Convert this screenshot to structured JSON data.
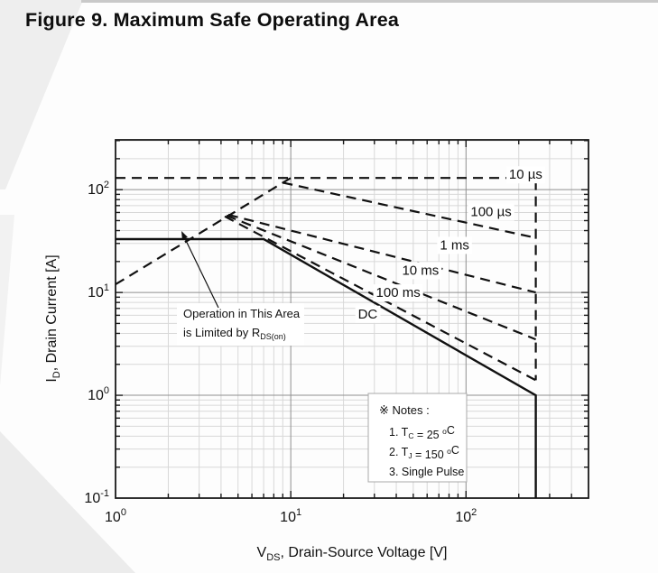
{
  "figure": {
    "title": "Figure 9. Maximum Safe Operating Area"
  },
  "chart_data": {
    "type": "line",
    "scale": "log-log",
    "title": "Figure 9. Maximum Safe Operating Area",
    "grid": "major and minor log gridlines on",
    "x_axis": {
      "label": {
        "pre": "V",
        "sub": "DS",
        "post": ", Drain-Source Voltage [V]"
      },
      "min": 1,
      "max": 500,
      "tick_exponents": [
        0,
        1,
        2
      ]
    },
    "y_axis": {
      "label": {
        "pre": "I",
        "sub": "D",
        "post": ", Drain Current [A]"
      },
      "min": 0.1,
      "max": 305,
      "tick_exponents": [
        2,
        1,
        0,
        -1
      ]
    },
    "series": [
      {
        "name": "rdson-limit-line",
        "style": "dashed",
        "label": "",
        "points": [
          [
            1,
            12
          ],
          [
            10,
            130
          ]
        ]
      },
      {
        "name": "pulse-10us",
        "style": "dashed",
        "label": "10 µs",
        "label_at": [
          219,
          141
        ],
        "points": [
          [
            1,
            130
          ],
          [
            250,
            130
          ],
          [
            250,
            1.4
          ]
        ]
      },
      {
        "name": "pulse-100us",
        "style": "dashed",
        "label": "100 µs",
        "label_at": [
          139,
          61
        ],
        "points": [
          [
            9,
            117
          ],
          [
            250,
            34
          ]
        ]
      },
      {
        "name": "pulse-1ms",
        "style": "dashed",
        "label": "1 ms",
        "label_at": [
          86,
          29
        ],
        "points": [
          [
            4.4,
            57
          ],
          [
            250,
            10
          ]
        ]
      },
      {
        "name": "pulse-10ms",
        "style": "dashed",
        "label": "10 ms",
        "label_at": [
          55,
          16.5
        ],
        "points": [
          [
            4.3,
            56
          ],
          [
            250,
            3.5
          ]
        ]
      },
      {
        "name": "pulse-100ms",
        "style": "dashed",
        "label": "100 ms",
        "label_at": [
          41,
          10
        ],
        "points": [
          [
            4.2,
            55
          ],
          [
            250,
            1.4
          ]
        ]
      },
      {
        "name": "dc-limit",
        "style": "solid",
        "label": "DC",
        "label_at": [
          27.5,
          6.2
        ],
        "points": [
          [
            1,
            33
          ],
          [
            7,
            33
          ],
          [
            250,
            1
          ],
          [
            250,
            0.1
          ]
        ]
      }
    ],
    "annotation": {
      "line1": "Operation in This Area",
      "line2": {
        "pre": "is Limited by R",
        "sub": "DS(on)"
      }
    },
    "notes": {
      "header": "※ Notes :",
      "items": [
        {
          "parts": [
            {
              "t": "1. T"
            },
            {
              "sub": "C"
            },
            {
              "t": " = 25 "
            },
            {
              "sup": "o"
            },
            {
              "t": "C"
            }
          ]
        },
        {
          "parts": [
            {
              "t": "2. T"
            },
            {
              "sub": "J"
            },
            {
              "t": " = 150 "
            },
            {
              "sup": "o"
            },
            {
              "t": "C"
            }
          ]
        },
        {
          "parts": [
            {
              "t": "3. Single Pulse"
            }
          ]
        }
      ]
    },
    "colors": {
      "curve": "#111111",
      "major_grid": "#909090",
      "minor_grid": "#d8d8d8",
      "frame": "#1a1a1a"
    }
  }
}
